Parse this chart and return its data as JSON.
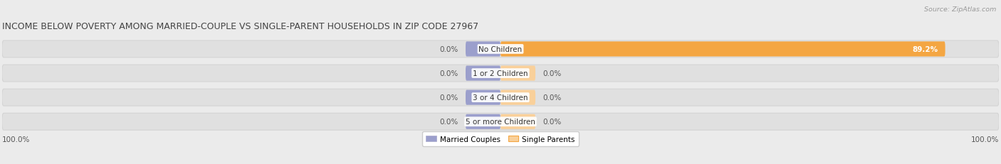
{
  "title": "INCOME BELOW POVERTY AMONG MARRIED-COUPLE VS SINGLE-PARENT HOUSEHOLDS IN ZIP CODE 27967",
  "source": "Source: ZipAtlas.com",
  "categories": [
    "No Children",
    "1 or 2 Children",
    "3 or 4 Children",
    "5 or more Children"
  ],
  "married_values": [
    0.0,
    0.0,
    0.0,
    0.0
  ],
  "single_values": [
    89.2,
    0.0,
    0.0,
    0.0
  ],
  "married_color": "#9b9fcc",
  "single_color": "#f4a642",
  "single_color_light": "#f9d09a",
  "bg_color": "#ebebeb",
  "bar_bg_color": "#e0e0e0",
  "bar_bg_edge": "#d4d4d4",
  "title_fontsize": 9.0,
  "label_fontsize": 7.5,
  "tick_fontsize": 7.5,
  "xlim": [
    -100,
    100
  ],
  "bar_height": 0.62,
  "small_bar_width": 7.0,
  "x_left_label": "100.0%",
  "x_right_label": "100.0%"
}
